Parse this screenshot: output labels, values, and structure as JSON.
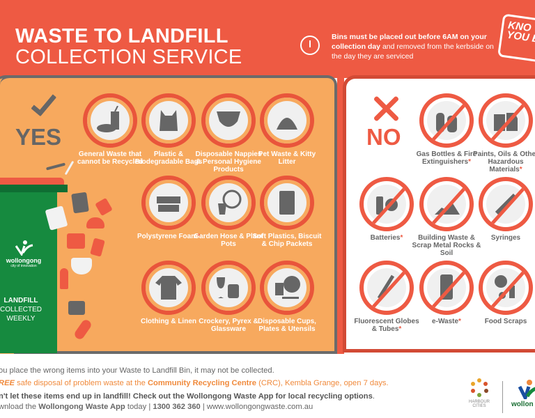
{
  "header": {
    "title_line1": "WASTE TO LANDFILL",
    "title_line2": "COLLECTION SERVICE",
    "notice_bold": "Bins must be placed out before 6AM on your collection day",
    "notice_rest": " and removed from the kerbside on the day they are serviced",
    "badge": "KNOW YOUR BIN",
    "badge_visible": "KNO YOU BI"
  },
  "yes": {
    "label": "YES",
    "items": [
      {
        "label": "General Waste that cannot be Recycled",
        "icon": "cup-slipper-icon"
      },
      {
        "label": "Plastic & Biodegradable Bags",
        "icon": "plastic-bag-icon"
      },
      {
        "label": "Disposable Nappies & Personal Hygiene Products",
        "icon": "nappy-icon"
      },
      {
        "label": "Pet Waste & Kitty Litter",
        "icon": "pet-waste-icon"
      },
      {
        "label": "Polystyrene Foam",
        "star": "*",
        "icon": "foam-icon"
      },
      {
        "label": "Garden Hose & Plant Pots",
        "icon": "hose-pot-icon"
      },
      {
        "label": "Soft Plastics, Biscuit & Chip Packets",
        "icon": "chip-packet-icon"
      },
      {
        "label": "Clothing & Linen",
        "icon": "tshirt-icon"
      },
      {
        "label": "Crockery, Pyrex & Glassware",
        "icon": "glass-jug-icon"
      },
      {
        "label": "Disposable Cups, Plates & Utensils",
        "icon": "plate-cup-icon"
      }
    ]
  },
  "no": {
    "label": "NO",
    "items": [
      {
        "label": "Gas Bottles & Fire Extinguishers",
        "star": "*",
        "icon": "gas-bottle-icon"
      },
      {
        "label": "Paints, Oils & Other Hazardous Materials",
        "star": "*",
        "icon": "paint-can-icon"
      },
      {
        "label": "Batteries",
        "star": "*",
        "icon": "battery-icon"
      },
      {
        "label": "Building Waste & Scrap Metal Rocks & Soil",
        "icon": "rubble-icon"
      },
      {
        "label": "Syringes",
        "icon": "syringe-icon"
      },
      {
        "label": "Fluorescent Globes & Tubes",
        "star": "*",
        "icon": "fluoro-tube-icon"
      },
      {
        "label": "e-Waste",
        "star": "*",
        "icon": "phone-icon"
      },
      {
        "label": "Food Scraps",
        "icon": "food-scraps-icon"
      }
    ]
  },
  "bin": {
    "logo": "wollongong",
    "logo_tagline": "city of innovation",
    "label_bold": "LANDFILL",
    "label_line2": "COLLECTED",
    "label_line3": "WEEKLY"
  },
  "footer": {
    "line1": "ou place the wrong items into your Waste to Landfill Bin, it may not be collected.",
    "line2_a": "REE",
    "line2_b": " safe disposal of problem waste at the ",
    "line2_c": "Community Recycling Centre",
    "line2_d": " (CRC), Kembla Grange, open 7 days.",
    "line3_a": "n't let these items end up in landfill! Check out the Wollongong Waste App for local recycling options",
    "line3_b": ".",
    "line4_a": "wnload the ",
    "line4_b": "Wollongong Waste App",
    "line4_c": " today | ",
    "line4_d": "1300 362 360",
    "line4_e": " | www.wollongongwaste.com.au",
    "logo1": "HARBOUR CITIES",
    "logo2": "wollon"
  },
  "colors": {
    "header": "#ee5a43",
    "panel": "#f7a95e",
    "bin": "#168a3f",
    "icon": "#666666"
  }
}
